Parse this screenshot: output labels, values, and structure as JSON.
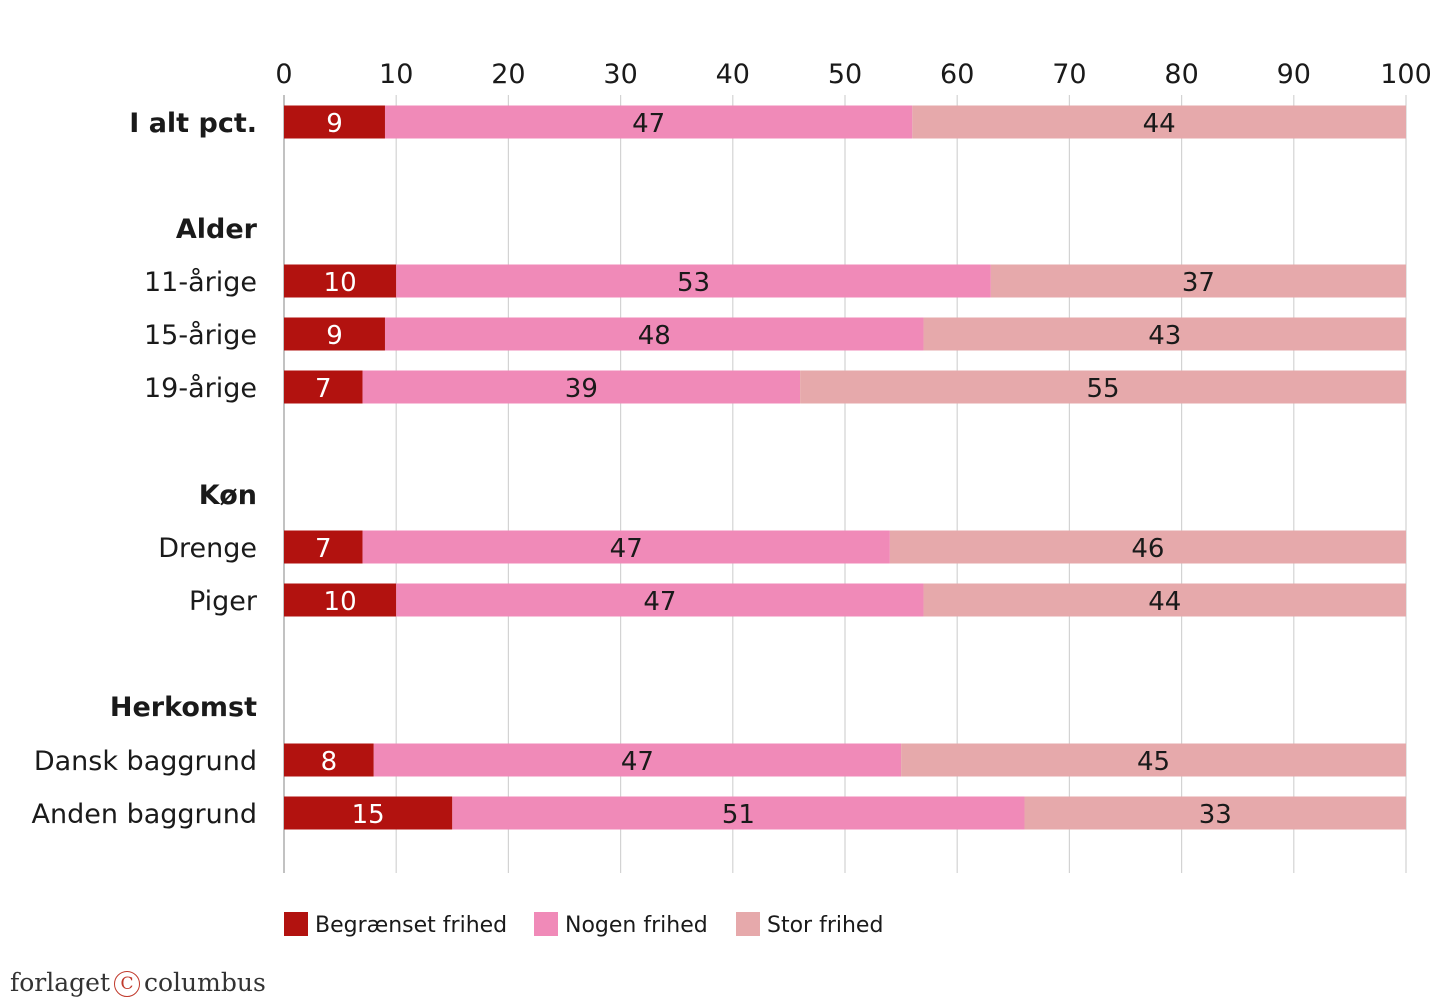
{
  "chart_data": {
    "type": "bar",
    "orientation": "horizontal",
    "stacked": true,
    "xlim": [
      0,
      100
    ],
    "xticks": [
      0,
      10,
      20,
      30,
      40,
      50,
      60,
      70,
      80,
      90,
      100
    ],
    "grid": true,
    "legend_position": "bottom-left",
    "series": [
      {
        "name": "Begrænset frihed",
        "color": "#b2120f"
      },
      {
        "name": "Nogen frihed",
        "color": "#f08ab8"
      },
      {
        "name": "Stor frihed",
        "color": "#e6a9ab"
      }
    ],
    "rows": [
      {
        "label": "I alt pct.",
        "bold": true,
        "values": [
          9,
          47,
          44
        ]
      },
      {
        "label": "Alder",
        "bold": true,
        "header": true
      },
      {
        "label": "11-årige",
        "values": [
          10,
          53,
          37
        ]
      },
      {
        "label": "15-årige",
        "values": [
          9,
          48,
          43
        ]
      },
      {
        "label": "19-årige",
        "values": [
          7,
          39,
          55
        ]
      },
      {
        "label": "Køn",
        "bold": true,
        "header": true
      },
      {
        "label": "Drenge",
        "values": [
          7,
          47,
          46
        ]
      },
      {
        "label": "Piger",
        "values": [
          10,
          47,
          44
        ]
      },
      {
        "label": "Herkomst",
        "bold": true,
        "header": true
      },
      {
        "label": "Dansk baggrund",
        "values": [
          8,
          47,
          45
        ]
      },
      {
        "label": "Anden baggrund",
        "values": [
          15,
          51,
          33
        ]
      }
    ]
  },
  "footer": {
    "publisher_left": "forlaget",
    "publisher_mark": "C",
    "publisher_right": "columbus"
  }
}
